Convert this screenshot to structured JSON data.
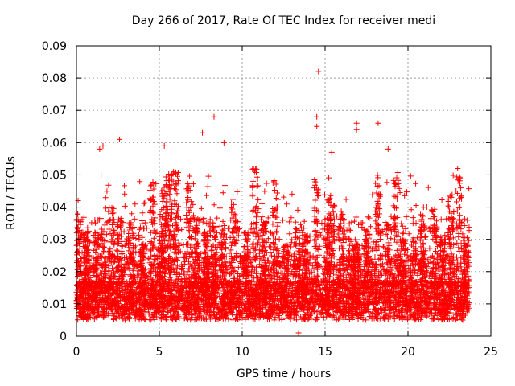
{
  "chart_data": {
    "type": "scatter",
    "title": "Day 266 of 2017, Rate Of TEC Index for receiver medi",
    "xlabel": "GPS time / hours",
    "ylabel": "ROTI / TECUs",
    "xlim": [
      0,
      25
    ],
    "ylim": [
      0,
      0.09
    ],
    "xticks": [
      0,
      5,
      10,
      15,
      20,
      25
    ],
    "yticks": [
      0,
      0.01,
      0.02,
      0.03,
      0.04,
      0.05,
      0.06,
      0.07,
      0.08,
      0.09
    ],
    "ytick_labels": [
      "0",
      "0.01",
      "0.02",
      "0.03",
      "0.04",
      "0.05",
      "0.06",
      "0.07",
      "0.08",
      "0.09"
    ],
    "grid": true,
    "marker": "+",
    "color": "#ff0000",
    "series": [
      {
        "name": "ROTI",
        "x_range": [
          0.0,
          23.7
        ],
        "typical_range": [
          0.005,
          0.03
        ],
        "notable_points": [
          {
            "x": 14.6,
            "y": 0.082
          },
          {
            "x": 14.5,
            "y": 0.068
          },
          {
            "x": 14.5,
            "y": 0.065
          },
          {
            "x": 8.3,
            "y": 0.068
          },
          {
            "x": 7.6,
            "y": 0.063
          },
          {
            "x": 2.6,
            "y": 0.061
          },
          {
            "x": 8.9,
            "y": 0.06
          },
          {
            "x": 16.9,
            "y": 0.066
          },
          {
            "x": 18.2,
            "y": 0.066
          },
          {
            "x": 1.6,
            "y": 0.059
          },
          {
            "x": 5.3,
            "y": 0.059
          },
          {
            "x": 18.8,
            "y": 0.058
          },
          {
            "x": 15.4,
            "y": 0.057
          },
          {
            "x": 16.9,
            "y": 0.064
          },
          {
            "x": 1.4,
            "y": 0.058
          },
          {
            "x": 0.1,
            "y": 0.042
          },
          {
            "x": 22.9,
            "y": 0.045
          },
          {
            "x": 13.4,
            "y": 0.001
          }
        ]
      }
    ]
  }
}
